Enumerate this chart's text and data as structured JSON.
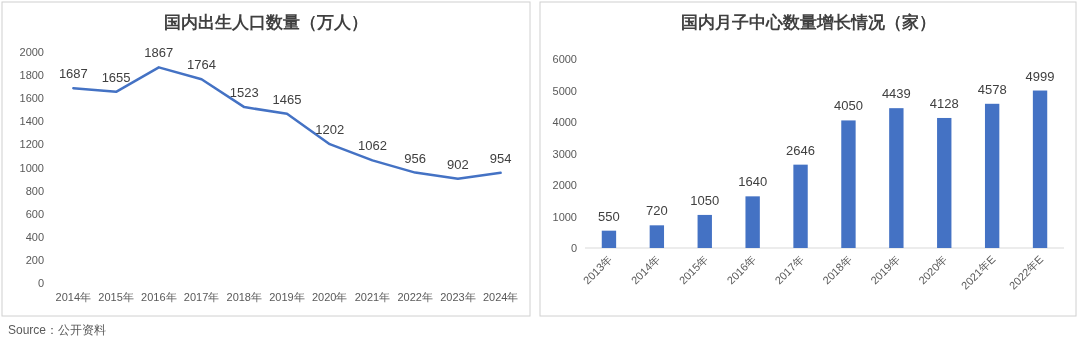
{
  "chart_data": [
    {
      "type": "line",
      "title": "国内出生人口数量（万人）",
      "categories": [
        "2014年",
        "2015年",
        "2016年",
        "2017年",
        "2018年",
        "2019年",
        "2020年",
        "2021年",
        "2022年",
        "2023年",
        "2024年"
      ],
      "values": [
        1687,
        1655,
        1867,
        1764,
        1523,
        1465,
        1202,
        1062,
        956,
        902,
        954
      ],
      "color": "#4472c4",
      "ylim": [
        0,
        2000
      ],
      "yticks": [
        0,
        200,
        400,
        600,
        800,
        1000,
        1200,
        1400,
        1600,
        1800,
        2000
      ],
      "data_labels": true,
      "marker": "none",
      "annotations": [
        "Source：公开资料"
      ]
    },
    {
      "type": "bar",
      "title": "国内月子中心数量增长情况（家）",
      "categories": [
        "2013年",
        "2014年",
        "2015年",
        "2016年",
        "2017年",
        "2018年",
        "2019年",
        "2020年",
        "2021年E",
        "2022年E"
      ],
      "values": [
        550,
        720,
        1050,
        1640,
        2646,
        4050,
        4439,
        4128,
        4578,
        4999
      ],
      "color": "#4472c4",
      "ylim": [
        0,
        6000
      ],
      "yticks": [
        0,
        1000,
        2000,
        3000,
        4000,
        5000,
        6000
      ],
      "data_labels": true
    }
  ]
}
